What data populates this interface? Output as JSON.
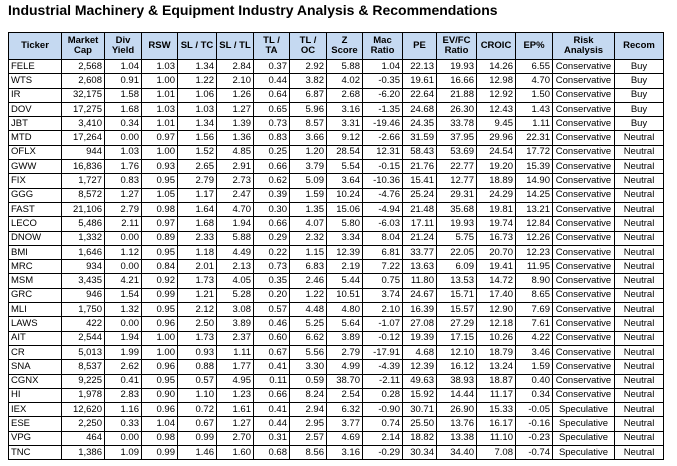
{
  "header": {
    "title": "Industrial Machinery & Equipment Industry Analysis & Recommendations"
  },
  "table": {
    "columns": [
      "Ticker",
      "Market Cap",
      "Div Yield",
      "RSW",
      "SL / TC",
      "SL / TL",
      "TL / TA",
      "TL / OC",
      "Z Score",
      "Mac Ratio",
      "PE",
      "EV/FC Ratio",
      "CROIC",
      "EP%",
      "Risk Analysis",
      "Recom"
    ],
    "rows": [
      [
        "FELE",
        "2,568",
        "1.04",
        "1.03",
        "1.34",
        "2.84",
        "0.37",
        "2.92",
        "5.88",
        "1.04",
        "22.13",
        "19.93",
        "14.26",
        "6.55",
        "Conservative",
        "Buy"
      ],
      [
        "WTS",
        "2,608",
        "0.91",
        "1.00",
        "1.22",
        "2.10",
        "0.44",
        "3.82",
        "4.02",
        "-0.35",
        "19.61",
        "16.66",
        "12.98",
        "4.70",
        "Conservative",
        "Buy"
      ],
      [
        "IR",
        "32,175",
        "1.58",
        "1.01",
        "1.06",
        "1.26",
        "0.64",
        "6.87",
        "2.68",
        "-6.20",
        "22.64",
        "21.88",
        "12.92",
        "1.50",
        "Conservative",
        "Buy"
      ],
      [
        "DOV",
        "17,275",
        "1.68",
        "1.03",
        "1.03",
        "1.27",
        "0.65",
        "5.96",
        "3.16",
        "-1.35",
        "24.68",
        "26.30",
        "12.43",
        "1.43",
        "Conservative",
        "Buy"
      ],
      [
        "JBT",
        "3,410",
        "0.34",
        "1.01",
        "1.34",
        "1.39",
        "0.73",
        "8.57",
        "3.31",
        "-19.46",
        "24.35",
        "33.78",
        "9.45",
        "1.11",
        "Conservative",
        "Buy"
      ],
      [
        "MTD",
        "17,264",
        "0.00",
        "0.97",
        "1.56",
        "1.36",
        "0.83",
        "3.66",
        "9.12",
        "-2.66",
        "31.59",
        "37.95",
        "29.96",
        "22.31",
        "Conservative",
        "Neutral"
      ],
      [
        "OFLX",
        "944",
        "1.03",
        "1.00",
        "1.52",
        "4.85",
        "0.25",
        "1.20",
        "28.54",
        "12.31",
        "58.43",
        "53.69",
        "24.54",
        "17.72",
        "Conservative",
        "Neutral"
      ],
      [
        "GWW",
        "16,836",
        "1.76",
        "0.93",
        "2.65",
        "2.91",
        "0.66",
        "3.79",
        "5.54",
        "-0.15",
        "21.76",
        "22.77",
        "19.20",
        "15.39",
        "Conservative",
        "Neutral"
      ],
      [
        "FIX",
        "1,727",
        "0.83",
        "0.95",
        "2.79",
        "2.73",
        "0.62",
        "5.09",
        "3.64",
        "-10.36",
        "15.41",
        "12.77",
        "18.89",
        "14.90",
        "Conservative",
        "Neutral"
      ],
      [
        "GGG",
        "8,572",
        "1.27",
        "1.05",
        "1.17",
        "2.47",
        "0.39",
        "1.59",
        "10.24",
        "-4.76",
        "25.24",
        "29.31",
        "24.29",
        "14.25",
        "Conservative",
        "Neutral"
      ],
      [
        "FAST",
        "21,106",
        "2.79",
        "0.98",
        "1.64",
        "4.70",
        "0.30",
        "1.35",
        "15.06",
        "-4.94",
        "21.48",
        "35.68",
        "19.81",
        "13.21",
        "Conservative",
        "Neutral"
      ],
      [
        "LECO",
        "5,486",
        "2.11",
        "0.97",
        "1.68",
        "1.94",
        "0.66",
        "4.07",
        "5.80",
        "-6.03",
        "17.11",
        "19.93",
        "19.74",
        "12.84",
        "Conservative",
        "Neutral"
      ],
      [
        "DNOW",
        "1,332",
        "0.00",
        "0.89",
        "2.33",
        "5.88",
        "0.29",
        "2.32",
        "3.34",
        "8.04",
        "21.24",
        "5.75",
        "16.73",
        "12.26",
        "Conservative",
        "Neutral"
      ],
      [
        "BMI",
        "1,646",
        "1.12",
        "0.95",
        "1.18",
        "4.49",
        "0.22",
        "1.15",
        "12.39",
        "6.81",
        "33.77",
        "22.05",
        "20.70",
        "12.23",
        "Conservative",
        "Neutral"
      ],
      [
        "MRC",
        "934",
        "0.00",
        "0.84",
        "2.01",
        "2.13",
        "0.73",
        "6.83",
        "2.19",
        "7.22",
        "13.63",
        "6.09",
        "19.41",
        "11.95",
        "Conservative",
        "Neutral"
      ],
      [
        "MSM",
        "3,435",
        "4.21",
        "0.92",
        "1.73",
        "4.05",
        "0.35",
        "2.46",
        "5.44",
        "0.75",
        "11.80",
        "13.53",
        "14.72",
        "8.90",
        "Conservative",
        "Neutral"
      ],
      [
        "GRC",
        "946",
        "1.54",
        "0.99",
        "1.21",
        "5.28",
        "0.20",
        "1.22",
        "10.51",
        "3.74",
        "24.67",
        "15.71",
        "17.40",
        "8.65",
        "Conservative",
        "Neutral"
      ],
      [
        "MLI",
        "1,750",
        "1.32",
        "0.95",
        "2.12",
        "3.08",
        "0.57",
        "4.48",
        "4.80",
        "2.10",
        "16.39",
        "15.57",
        "12.90",
        "7.69",
        "Conservative",
        "Neutral"
      ],
      [
        "LAWS",
        "422",
        "0.00",
        "0.96",
        "2.50",
        "3.89",
        "0.46",
        "5.25",
        "5.64",
        "-1.07",
        "27.08",
        "27.29",
        "12.18",
        "7.61",
        "Conservative",
        "Neutral"
      ],
      [
        "AIT",
        "2,544",
        "1.94",
        "1.00",
        "1.73",
        "2.37",
        "0.60",
        "6.62",
        "3.89",
        "-0.12",
        "19.39",
        "17.15",
        "10.26",
        "4.22",
        "Conservative",
        "Neutral"
      ],
      [
        "CR",
        "5,013",
        "1.99",
        "1.00",
        "0.93",
        "1.11",
        "0.67",
        "5.56",
        "2.79",
        "-17.91",
        "4.68",
        "12.10",
        "18.79",
        "3.46",
        "Conservative",
        "Neutral"
      ],
      [
        "SNA",
        "8,537",
        "2.62",
        "0.96",
        "0.88",
        "1.77",
        "0.41",
        "3.30",
        "4.99",
        "-4.39",
        "12.39",
        "16.12",
        "13.24",
        "1.59",
        "Conservative",
        "Neutral"
      ],
      [
        "CGNX",
        "9,225",
        "0.41",
        "0.95",
        "0.57",
        "4.95",
        "0.11",
        "0.59",
        "38.70",
        "-2.11",
        "49.63",
        "38.93",
        "18.87",
        "0.40",
        "Conservative",
        "Neutral"
      ],
      [
        "HI",
        "1,978",
        "2.83",
        "0.90",
        "1.10",
        "1.23",
        "0.66",
        "8.24",
        "2.54",
        "0.28",
        "15.92",
        "14.44",
        "11.17",
        "0.34",
        "Conservative",
        "Neutral"
      ],
      [
        "IEX",
        "12,620",
        "1.16",
        "0.96",
        "0.72",
        "1.61",
        "0.41",
        "2.94",
        "6.32",
        "-0.90",
        "30.71",
        "26.90",
        "15.33",
        "-0.05",
        "Speculative",
        "Neutral"
      ],
      [
        "ESE",
        "2,250",
        "0.33",
        "1.04",
        "0.67",
        "1.27",
        "0.44",
        "2.95",
        "3.77",
        "0.74",
        "25.50",
        "13.76",
        "16.17",
        "-0.16",
        "Speculative",
        "Neutral"
      ],
      [
        "VPG",
        "464",
        "0.00",
        "0.98",
        "0.99",
        "2.70",
        "0.31",
        "2.57",
        "4.69",
        "2.14",
        "18.82",
        "13.38",
        "11.10",
        "-0.23",
        "Speculative",
        "Neutral"
      ],
      [
        "TNC",
        "1,386",
        "1.09",
        "0.99",
        "1.46",
        "1.60",
        "0.68",
        "8.56",
        "3.16",
        "-0.29",
        "30.34",
        "34.40",
        "7.08",
        "-0.74",
        "Speculative",
        "Neutral"
      ]
    ]
  }
}
